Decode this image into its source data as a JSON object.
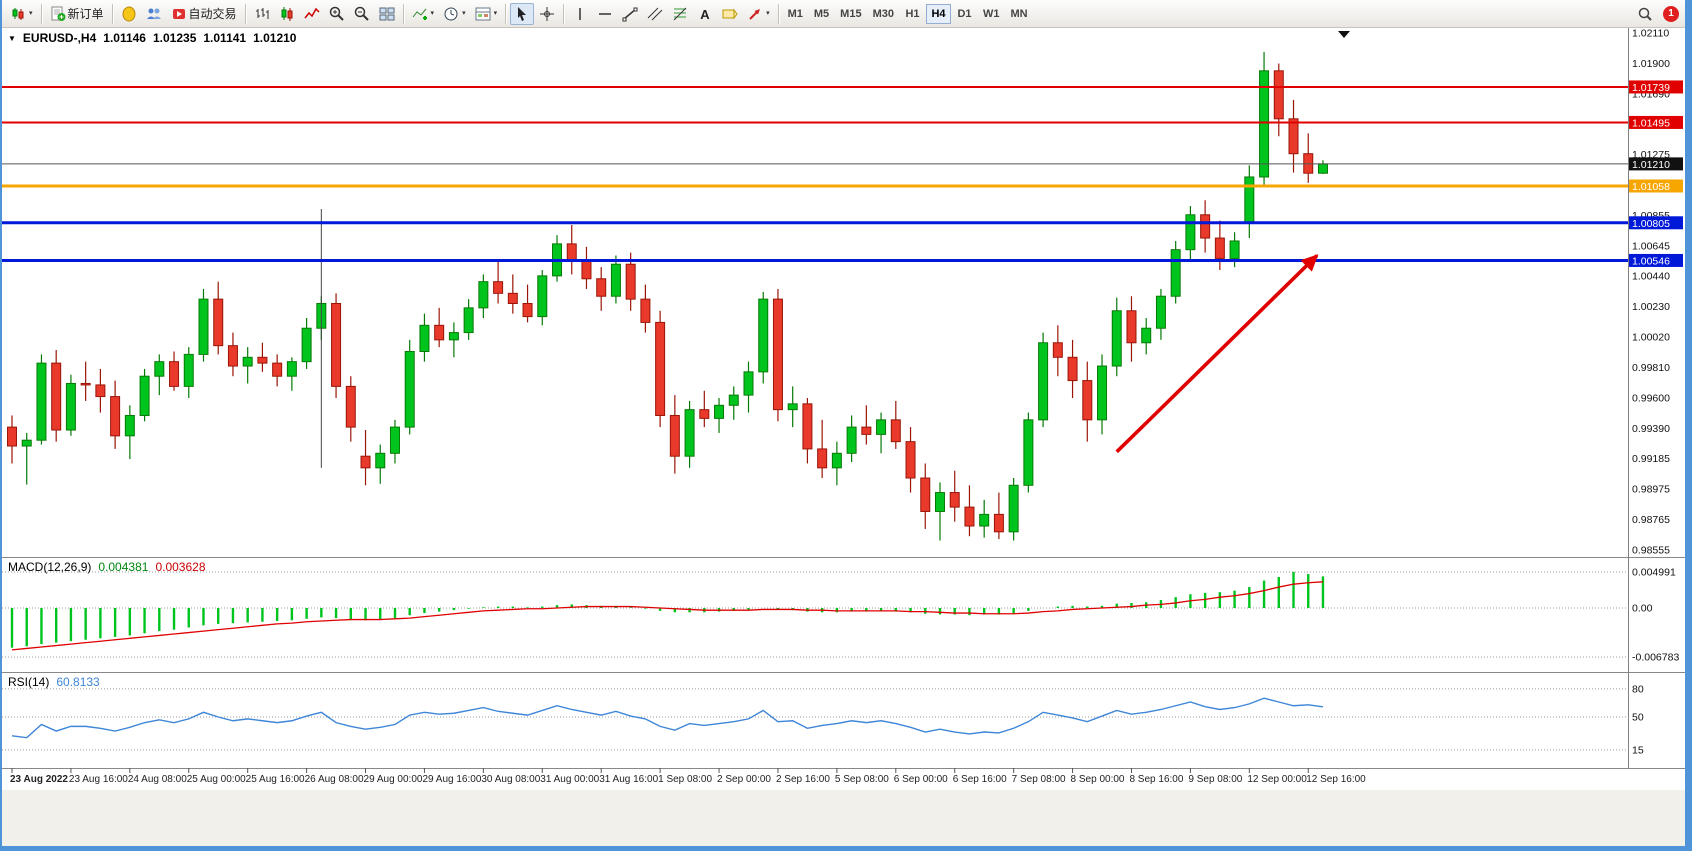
{
  "icons": {
    "dropdown_arrow": "▼",
    "caret": "▾"
  },
  "toolbar": {
    "groups": [
      [
        {
          "icon": "chart-menu",
          "name": "chart-menu-button",
          "dropdown": true
        }
      ],
      [
        {
          "icon": "new-order",
          "name": "new-order-button",
          "label": "新订单"
        }
      ],
      [
        {
          "icon": "metaeditor",
          "name": "metaeditor-button"
        },
        {
          "icon": "community",
          "name": "community-button"
        },
        {
          "icon": "autotrading",
          "name": "autotrading-button",
          "label": "自动交易"
        }
      ],
      [
        {
          "icon": "bars-chart",
          "name": "bars-chart-button"
        },
        {
          "icon": "candles-chart",
          "name": "candles-chart-button"
        },
        {
          "icon": "line-chart",
          "name": "line-chart-button"
        },
        {
          "icon": "zoom-in",
          "name": "zoom-in-button"
        },
        {
          "icon": "zoom-out",
          "name": "zoom-out-button"
        },
        {
          "icon": "tile-windows",
          "name": "tile-windows-button"
        }
      ],
      [
        {
          "icon": "indicators",
          "name": "indicators-button",
          "dropdown": true
        },
        {
          "icon": "periods",
          "name": "periods-button",
          "dropdown": true
        },
        {
          "icon": "templates",
          "name": "templates-button",
          "dropdown": true
        }
      ],
      [
        {
          "icon": "cursor",
          "name": "cursor-button",
          "active": true
        },
        {
          "icon": "crosshair",
          "name": "crosshair-button"
        }
      ],
      [
        {
          "icon": "vline",
          "name": "vertical-line-button"
        },
        {
          "icon": "hline",
          "name": "horizontal-line-button"
        },
        {
          "icon": "trendline",
          "name": "trendline-button"
        },
        {
          "icon": "channel",
          "name": "channel-button"
        },
        {
          "icon": "fibonacci",
          "name": "fibonacci-button"
        },
        {
          "icon": "text",
          "name": "text-button"
        },
        {
          "icon": "label",
          "name": "text-label-button"
        },
        {
          "icon": "arrows",
          "name": "arrows-button",
          "dropdown": true
        }
      ]
    ],
    "timeframes": [
      {
        "label": "M1"
      },
      {
        "label": "M5"
      },
      {
        "label": "M15"
      },
      {
        "label": "M30"
      },
      {
        "label": "H1"
      },
      {
        "label": "H4",
        "active": true
      },
      {
        "label": "D1"
      },
      {
        "label": "W1"
      },
      {
        "label": "MN"
      }
    ],
    "notification_count": "1"
  },
  "chart_data": {
    "type": "candlestick",
    "symbol": "EURUSD-",
    "period": "H4",
    "symbol_period": "EURUSD-,H4",
    "ohlc_header": {
      "open": "1.01146",
      "high": "1.01235",
      "low": "1.01141",
      "close": "1.01210"
    },
    "colors": {
      "candle_up": "#00C41E",
      "candle_up_border": "#067A06",
      "candle_down": "#E8392B",
      "candle_down_border": "#9A1507",
      "macd_hist": "#00C41E",
      "macd_signal": "#E00000",
      "rsi_line": "#3E86D8",
      "hline_red": "#E00000",
      "hline_orange": "#F7A600",
      "hline_blue": "#0018D8",
      "price_line": "#555555",
      "arrow": "#E00000"
    },
    "price_axis": {
      "max": 1.0211,
      "min": 0.98555,
      "labels": [
        "1.02110",
        "1.01900",
        "1.01690",
        "1.01275",
        "1.00855",
        "1.00645",
        "1.00440",
        "1.00230",
        "1.00020",
        "0.99810",
        "0.99600",
        "0.99390",
        "0.99185",
        "0.98975",
        "0.98765",
        "0.98555"
      ]
    },
    "hlines": [
      {
        "price": 1.01739,
        "color": "#E00000",
        "width": 2,
        "badge": "1.01739"
      },
      {
        "price": 1.01495,
        "color": "#E00000",
        "width": 2,
        "badge": "1.01495"
      },
      {
        "price": 1.01058,
        "color": "#F7A600",
        "width": 3,
        "badge": "1.01058"
      },
      {
        "price": 1.00805,
        "color": "#0018D8",
        "width": 3,
        "badge": "1.00805"
      },
      {
        "price": 1.00546,
        "color": "#0018D8",
        "width": 3,
        "badge": "1.00546"
      }
    ],
    "current_price": {
      "value": 1.0121,
      "badge": "1.01210"
    },
    "vline": {
      "i": 21,
      "p1": 1.009,
      "p2": 0.9912
    },
    "arrow": {
      "i1": 75,
      "p1": 0.9923,
      "i2": 89,
      "p2": 1.0058,
      "color": "#E00000"
    },
    "candles": [
      [
        0.994,
        0.9948,
        0.9915,
        0.9927
      ],
      [
        0.9927,
        0.9936,
        0.99005,
        0.9931
      ],
      [
        0.9931,
        0.999,
        0.9928,
        0.9984
      ],
      [
        0.9984,
        0.9993,
        0.993,
        0.9938
      ],
      [
        0.9938,
        0.9976,
        0.9934,
        0.997
      ],
      [
        0.997,
        0.9985,
        0.9958,
        0.9969
      ],
      [
        0.9969,
        0.998,
        0.995,
        0.9961
      ],
      [
        0.9961,
        0.9972,
        0.9925,
        0.9934
      ],
      [
        0.9934,
        0.9955,
        0.9918,
        0.9948
      ],
      [
        0.9948,
        0.998,
        0.9944,
        0.9975
      ],
      [
        0.9975,
        0.999,
        0.9962,
        0.9985
      ],
      [
        0.9985,
        0.9992,
        0.9965,
        0.9968
      ],
      [
        0.9968,
        0.9995,
        0.996,
        0.999
      ],
      [
        0.999,
        1.0035,
        0.9985,
        1.0028
      ],
      [
        1.0028,
        1.004,
        0.999,
        0.9996
      ],
      [
        0.9996,
        1.0005,
        0.9975,
        0.9982
      ],
      [
        0.9982,
        0.9995,
        0.997,
        0.9988
      ],
      [
        0.9988,
        0.9998,
        0.9978,
        0.9984
      ],
      [
        0.9984,
        0.999,
        0.9968,
        0.9975
      ],
      [
        0.9975,
        0.9988,
        0.9965,
        0.9985
      ],
      [
        0.9985,
        1.0015,
        0.998,
        1.0008
      ],
      [
        1.0008,
        1.003,
        1.0,
        1.0025
      ],
      [
        1.0025,
        1.0032,
        0.996,
        0.9968
      ],
      [
        0.9968,
        0.9975,
        0.993,
        0.994
      ],
      [
        0.992,
        0.9938,
        0.99,
        0.9912
      ],
      [
        0.9912,
        0.9928,
        0.9901,
        0.9922
      ],
      [
        0.9922,
        0.9945,
        0.9915,
        0.994
      ],
      [
        0.994,
        1.0,
        0.9935,
        0.9992
      ],
      [
        0.9992,
        1.0018,
        0.9985,
        1.001
      ],
      [
        1.001,
        1.0022,
        0.9995,
        1.0
      ],
      [
        1.0,
        1.0012,
        0.9988,
        1.0005
      ],
      [
        1.0005,
        1.0028,
        1.0,
        1.0022
      ],
      [
        1.0022,
        1.0045,
        1.0015,
        1.004
      ],
      [
        1.004,
        1.0054,
        1.0025,
        1.0032
      ],
      [
        1.0032,
        1.0045,
        1.0018,
        1.0025
      ],
      [
        1.0025,
        1.0038,
        1.0012,
        1.0016
      ],
      [
        1.0016,
        1.0048,
        1.001,
        1.0044
      ],
      [
        1.0044,
        1.0072,
        1.004,
        1.0066
      ],
      [
        1.0066,
        1.0079,
        1.0045,
        1.0054
      ],
      [
        1.0054,
        1.0064,
        1.0035,
        1.0042
      ],
      [
        1.0042,
        1.005,
        1.002,
        1.003
      ],
      [
        1.003,
        1.0058,
        1.0025,
        1.0052
      ],
      [
        1.0052,
        1.006,
        1.002,
        1.0028
      ],
      [
        1.0028,
        1.0038,
        1.0005,
        1.0012
      ],
      [
        1.0012,
        1.002,
        0.994,
        0.9948
      ],
      [
        0.9948,
        0.9962,
        0.9908,
        0.992
      ],
      [
        0.992,
        0.9958,
        0.9912,
        0.9952
      ],
      [
        0.9952,
        0.9965,
        0.994,
        0.9946
      ],
      [
        0.9946,
        0.996,
        0.9936,
        0.9955
      ],
      [
        0.9955,
        0.9968,
        0.9945,
        0.9962
      ],
      [
        0.9962,
        0.9985,
        0.995,
        0.9978
      ],
      [
        0.9978,
        1.0033,
        0.997,
        1.0028
      ],
      [
        1.0028,
        1.0035,
        0.9944,
        0.9952
      ],
      [
        0.9952,
        0.9968,
        0.994,
        0.9956
      ],
      [
        0.9956,
        0.996,
        0.9915,
        0.9925
      ],
      [
        0.9925,
        0.9945,
        0.9905,
        0.9912
      ],
      [
        0.9912,
        0.993,
        0.99,
        0.9922
      ],
      [
        0.9922,
        0.9948,
        0.9916,
        0.994
      ],
      [
        0.994,
        0.9955,
        0.9928,
        0.9935
      ],
      [
        0.9935,
        0.995,
        0.9922,
        0.9945
      ],
      [
        0.9945,
        0.9958,
        0.9925,
        0.993
      ],
      [
        0.993,
        0.994,
        0.9895,
        0.9905
      ],
      [
        0.9905,
        0.9915,
        0.987,
        0.9882
      ],
      [
        0.9882,
        0.9902,
        0.9862,
        0.9895
      ],
      [
        0.9895,
        0.991,
        0.9875,
        0.9885
      ],
      [
        0.9885,
        0.99,
        0.9865,
        0.9872
      ],
      [
        0.9872,
        0.989,
        0.9864,
        0.988
      ],
      [
        0.988,
        0.9895,
        0.9863,
        0.9868
      ],
      [
        0.9868,
        0.9905,
        0.9862,
        0.99
      ],
      [
        0.99,
        0.995,
        0.9895,
        0.9945
      ],
      [
        0.9945,
        1.0005,
        0.994,
        0.9998
      ],
      [
        0.9998,
        1.001,
        0.9975,
        0.9988
      ],
      [
        0.9988,
        1.0,
        0.996,
        0.9972
      ],
      [
        0.9972,
        0.9985,
        0.993,
        0.9945
      ],
      [
        0.9945,
        0.999,
        0.9935,
        0.9982
      ],
      [
        0.9982,
        1.0029,
        0.9975,
        1.002
      ],
      [
        1.002,
        1.003,
        0.9985,
        0.9998
      ],
      [
        0.9998,
        1.0015,
        0.999,
        1.0008
      ],
      [
        1.0008,
        1.0035,
        1.0,
        1.003
      ],
      [
        1.003,
        1.0068,
        1.0025,
        1.0062
      ],
      [
        1.0062,
        1.0092,
        1.0055,
        1.0086
      ],
      [
        1.0086,
        1.0096,
        1.006,
        1.007
      ],
      [
        1.007,
        1.0082,
        1.0048,
        1.0056
      ],
      [
        1.0056,
        1.0074,
        1.005,
        1.0068
      ],
      [
        1.008,
        1.012,
        1.007,
        1.0112
      ],
      [
        1.0112,
        1.0198,
        1.0105,
        1.0185
      ],
      [
        1.0185,
        1.019,
        1.014,
        1.0152
      ],
      [
        1.0152,
        1.0165,
        1.0115,
        1.0128
      ],
      [
        1.0128,
        1.0142,
        1.0108,
        1.01146
      ],
      [
        1.01146,
        1.01235,
        1.01141,
        1.0121
      ]
    ],
    "time_labels": [
      {
        "i": 0,
        "t": "23 Aug 2022"
      },
      {
        "i": 4,
        "t": "23 Aug 16:00"
      },
      {
        "i": 8,
        "t": "24 Aug 08:00"
      },
      {
        "i": 12,
        "t": "25 Aug 00:00"
      },
      {
        "i": 16,
        "t": "25 Aug 16:00"
      },
      {
        "i": 20,
        "t": "26 Aug 08:00"
      },
      {
        "i": 24,
        "t": "29 Aug 00:00"
      },
      {
        "i": 28,
        "t": "29 Aug 16:00"
      },
      {
        "i": 32,
        "t": "30 Aug 08:00"
      },
      {
        "i": 36,
        "t": "31 Aug 00:00"
      },
      {
        "i": 40,
        "t": "31 Aug 16:00"
      },
      {
        "i": 44,
        "t": "1 Sep 08:00"
      },
      {
        "i": 48,
        "t": "2 Sep 00:00"
      },
      {
        "i": 52,
        "t": "2 Sep 16:00"
      },
      {
        "i": 56,
        "t": "5 Sep 08:00"
      },
      {
        "i": 60,
        "t": "6 Sep 00:00"
      },
      {
        "i": 64,
        "t": "6 Sep 16:00"
      },
      {
        "i": 68,
        "t": "7 Sep 08:00"
      },
      {
        "i": 72,
        "t": "8 Sep 00:00"
      },
      {
        "i": 76,
        "t": "8 Sep 16:00"
      },
      {
        "i": 80,
        "t": "9 Sep 08:00"
      },
      {
        "i": 84,
        "t": "12 Sep 00:00"
      },
      {
        "i": 88,
        "t": "12 Sep 16:00"
      }
    ],
    "macd": {
      "label": "MACD(12,26,9)",
      "main_value": "0.004381",
      "signal_value": "0.003628",
      "levels": [
        0.004991,
        0,
        -0.006783
      ],
      "scale_labels": [
        {
          "v": 0.004991,
          "t": "0.004991"
        },
        {
          "v": 0,
          "t": "0.00"
        },
        {
          "v": -0.006783,
          "t": "-0.006783"
        }
      ],
      "hist": [
        -0.0055,
        -0.0053,
        -0.005,
        -0.0048,
        -0.0046,
        -0.0044,
        -0.0042,
        -0.004,
        -0.0038,
        -0.0035,
        -0.0032,
        -0.003,
        -0.0027,
        -0.0024,
        -0.0022,
        -0.0021,
        -0.002,
        -0.0019,
        -0.0018,
        -0.0017,
        -0.0015,
        -0.0013,
        -0.0014,
        -0.0016,
        -0.0017,
        -0.0016,
        -0.0014,
        -0.001,
        -0.0007,
        -0.0005,
        -0.0003,
        -0.0001,
        0.0001,
        0.0002,
        0.0002,
        0.0001,
        0.0002,
        0.0004,
        0.0005,
        0.0004,
        0.0003,
        0.0003,
        0.0001,
        -0.0001,
        -0.0004,
        -0.0006,
        -0.0006,
        -0.0006,
        -0.0005,
        -0.0004,
        -0.0002,
        0.0,
        -0.0002,
        -0.0003,
        -0.0005,
        -0.0006,
        -0.0006,
        -0.0005,
        -0.0005,
        -0.0004,
        -0.0005,
        -0.0006,
        -0.0008,
        -0.0009,
        -0.0009,
        -0.001,
        -0.0009,
        -0.0009,
        -0.0007,
        -0.0004,
        0.0,
        0.0002,
        0.0003,
        0.0002,
        0.0003,
        0.0006,
        0.0007,
        0.0008,
        0.0011,
        0.0015,
        0.0019,
        0.0021,
        0.0022,
        0.0024,
        0.0029,
        0.0038,
        0.0043,
        0.005,
        0.0047,
        0.004381
      ],
      "signal": [
        -0.0058,
        -0.0056,
        -0.0054,
        -0.0052,
        -0.005,
        -0.0048,
        -0.0046,
        -0.0044,
        -0.0042,
        -0.004,
        -0.0038,
        -0.0036,
        -0.0034,
        -0.0032,
        -0.003,
        -0.0028,
        -0.0026,
        -0.0024,
        -0.0022,
        -0.0021,
        -0.0019,
        -0.0018,
        -0.0017,
        -0.0016,
        -0.0016,
        -0.0016,
        -0.0015,
        -0.0014,
        -0.0012,
        -0.001,
        -0.0008,
        -0.0006,
        -0.0004,
        -0.0003,
        -0.0002,
        -0.0001,
        -0.0001,
        0.0,
        0.0001,
        0.0002,
        0.0002,
        0.0002,
        0.0002,
        0.0001,
        0.0,
        -0.0001,
        -0.0002,
        -0.0003,
        -0.0003,
        -0.0003,
        -0.0003,
        -0.0002,
        -0.0002,
        -0.0002,
        -0.0003,
        -0.0003,
        -0.0004,
        -0.0004,
        -0.0004,
        -0.0004,
        -0.0004,
        -0.0005,
        -0.0005,
        -0.0006,
        -0.0007,
        -0.0007,
        -0.0008,
        -0.0008,
        -0.0008,
        -0.0007,
        -0.0005,
        -0.0004,
        -0.0002,
        -0.0001,
        0.0,
        0.0001,
        0.0002,
        0.0004,
        0.0005,
        0.0007,
        0.001,
        0.0012,
        0.0015,
        0.0017,
        0.002,
        0.0024,
        0.0029,
        0.0033,
        0.0035,
        0.003628
      ]
    },
    "rsi": {
      "label": "RSI(14)",
      "value": "60.8133",
      "levels": [
        80,
        50,
        15
      ],
      "series": [
        30,
        28,
        42,
        35,
        40,
        40,
        38,
        35,
        39,
        44,
        47,
        44,
        48,
        55,
        50,
        46,
        48,
        46,
        44,
        46,
        51,
        55,
        44,
        40,
        37,
        39,
        42,
        52,
        55,
        53,
        54,
        57,
        60,
        56,
        54,
        52,
        57,
        62,
        58,
        55,
        52,
        56,
        51,
        48,
        40,
        36,
        43,
        41,
        43,
        45,
        48,
        57,
        45,
        46,
        38,
        41,
        43,
        46,
        44,
        46,
        43,
        39,
        34,
        37,
        34,
        32,
        34,
        33,
        38,
        45,
        55,
        52,
        49,
        45,
        51,
        57,
        53,
        55,
        58,
        62,
        66,
        61,
        58,
        60,
        64,
        70,
        66,
        62,
        63,
        60.8133
      ]
    }
  }
}
